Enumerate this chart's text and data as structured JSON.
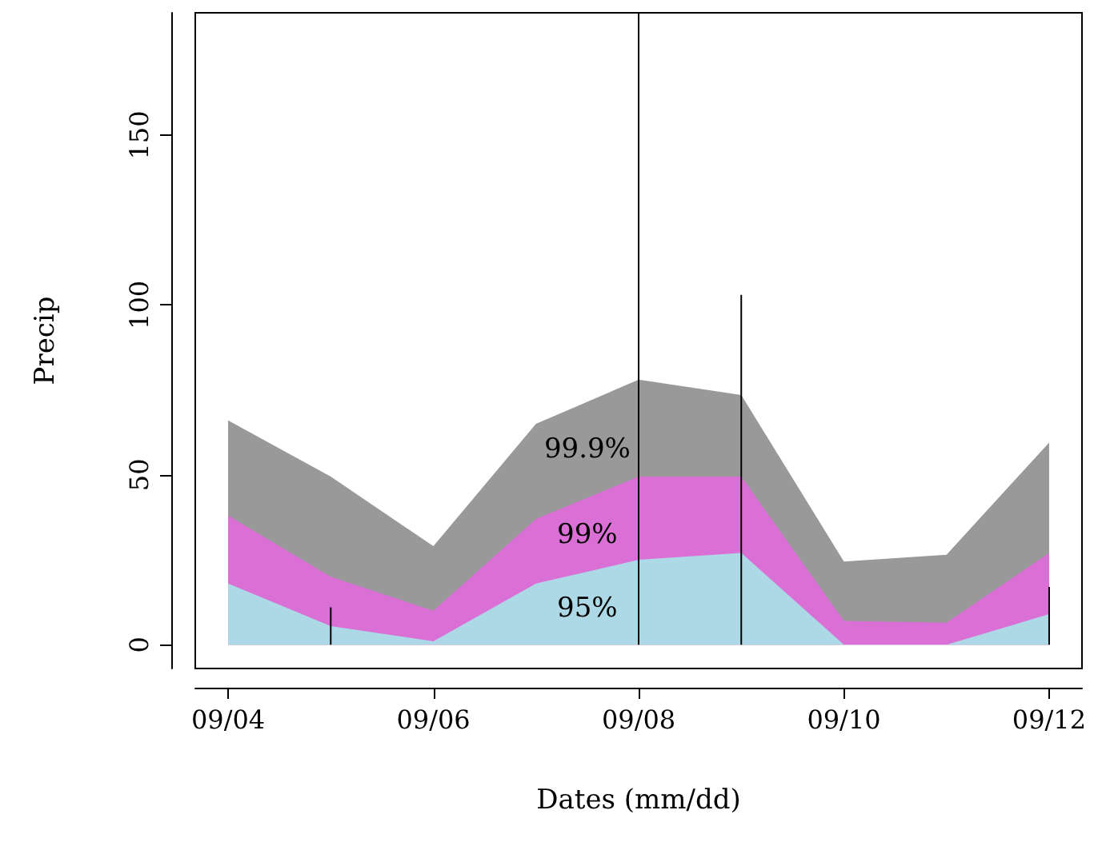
{
  "chart_data": {
    "type": "area",
    "xlabel": "Dates (mm/dd)",
    "ylabel": "Precip",
    "categories": [
      "09/04",
      null,
      "09/06",
      null,
      "09/08",
      null,
      "09/10",
      null,
      "09/12"
    ],
    "series": [
      {
        "name": "99.9%",
        "color": "#999999",
        "values": [
          66,
          49.5,
          29,
          65,
          78,
          73.5,
          24.5,
          26.5,
          59.5
        ]
      },
      {
        "name": "99%",
        "color": "#da70d6",
        "values": [
          38,
          20,
          10,
          37,
          49.5,
          49.5,
          7,
          6.5,
          27
        ]
      },
      {
        "name": "95%",
        "color": "#add8e6",
        "values": [
          18,
          5.5,
          1,
          18,
          25,
          27,
          0,
          0,
          9
        ]
      },
      {
        "type": "bar",
        "color": "#000000",
        "values": [
          0,
          11,
          0,
          0,
          186,
          103,
          0,
          0,
          17
        ]
      }
    ],
    "ylim": [
      -7,
      186
    ],
    "yticks": [
      0,
      50,
      100,
      150
    ],
    "grid": false,
    "legend": false
  }
}
